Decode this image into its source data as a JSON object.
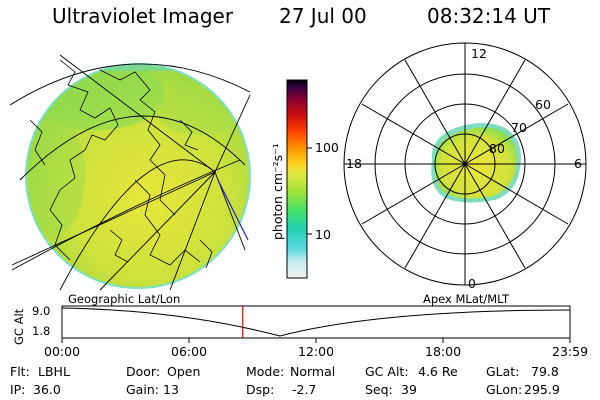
{
  "header": {
    "title": "Ultraviolet Imager",
    "date": "27 Jul 00",
    "time": "08:32:14 UT"
  },
  "colorbar": {
    "unit": "photon cm⁻²s⁻¹",
    "ticks": [
      "100",
      "10"
    ],
    "scale": "log",
    "colors": [
      "#f2f2f2",
      "#c8ecf0",
      "#5ad8e0",
      "#22d0b0",
      "#3ee070",
      "#9be33a",
      "#e6e640",
      "#ffd020",
      "#ff9000",
      "#ff4000",
      "#cc1010",
      "#8c0030",
      "#3a0040",
      "#000010"
    ]
  },
  "polar_plot": {
    "labels": [
      "12",
      "18",
      "6",
      "0",
      "60",
      "70",
      "80"
    ]
  },
  "geo_map": {
    "caption": "Geographic Lat/Lon",
    "emission_color": "#d9e43a"
  },
  "timeline": {
    "ylabel": "GC Alt",
    "y_ticks": [
      "9.0",
      "1.8"
    ],
    "right_caption": "Apex MLat/MLT",
    "x_ticks": [
      "00:00",
      "06:00",
      "12:00",
      "18:00",
      "23:59"
    ],
    "current_time_hours": 8.54,
    "marker_color": "#e00000"
  },
  "status": {
    "flt_label": "Flt:",
    "flt_value": "LBHL",
    "ip_label": "IP:",
    "ip_value": "36.0",
    "door_label": "Door:",
    "door_value": "Open",
    "gain_label": "Gain:",
    "gain_value": "13",
    "mode_label": "Mode:",
    "mode_value": "Normal",
    "dsp_label": "Dsp:",
    "dsp_value": "-2.7",
    "gcalt_label": "GC Alt:",
    "gcalt_value": "4.6 Re",
    "seq_label": "Seq:",
    "seq_value": "39",
    "glat_label": "GLat:",
    "glat_value": "79.8",
    "glon_label": "GLon:",
    "glon_value": "295.9"
  }
}
